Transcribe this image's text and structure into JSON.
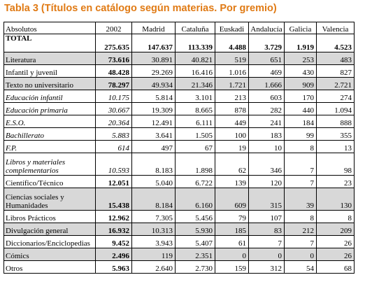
{
  "title": "Tabla 3 (Títulos en catálogo según materias. Por gremio)",
  "header": [
    "Absolutos",
    "2002",
    "Madrid",
    "Cataluña",
    "Euskadi",
    "Andalucía",
    "Galicia",
    "Valencia"
  ],
  "rows": [
    {
      "label": "TOTAL",
      "values": [
        "275.635",
        "147.637",
        "113.339",
        "4.488",
        "3.729",
        "1.919",
        "4.523"
      ],
      "bold": true,
      "italic": false,
      "shade": false,
      "h": 26
    },
    {
      "label": "Literatura",
      "values": [
        "73.616",
        "30.891",
        "40.821",
        "519",
        "651",
        "253",
        "483"
      ],
      "bold": false,
      "italic": false,
      "shade": true,
      "h": 18
    },
    {
      "label": "Infantil y juvenil",
      "values": [
        "48.428",
        "29.269",
        "16.416",
        "1.016",
        "469",
        "430",
        "827"
      ],
      "bold": false,
      "italic": false,
      "shade": false,
      "h": 18
    },
    {
      "label": "Texto no universitario",
      "values": [
        "78.297",
        "49.934",
        "21.346",
        "1.721",
        "1.666",
        "909",
        "2.721"
      ],
      "bold": false,
      "italic": false,
      "shade": true,
      "h": 18
    },
    {
      "label": " Educación infantil",
      "values": [
        "10.175",
        "5.814",
        "3.101",
        "213",
        "603",
        "170",
        "274"
      ],
      "bold": false,
      "italic": true,
      "shade": false,
      "h": 18
    },
    {
      "label": " Educación primaria",
      "values": [
        "30.667",
        "19.309",
        "8.665",
        "878",
        "282",
        "440",
        "1.094"
      ],
      "bold": false,
      "italic": true,
      "shade": false,
      "h": 18
    },
    {
      "label": " E.S.O.",
      "values": [
        "20.364",
        "12.491",
        "6.111",
        "449",
        "241",
        "184",
        "888"
      ],
      "bold": false,
      "italic": true,
      "shade": false,
      "h": 18
    },
    {
      "label": "Bachillerato",
      "values": [
        "5.883",
        "3.641",
        "1.505",
        "100",
        "183",
        "99",
        "355"
      ],
      "bold": false,
      "italic": true,
      "shade": false,
      "h": 18
    },
    {
      "label": " F.P.",
      "values": [
        "614",
        "497",
        "67",
        "19",
        "10",
        "8",
        "13"
      ],
      "bold": false,
      "italic": true,
      "shade": false,
      "h": 18
    },
    {
      "label": " Libros y materiales complementarios",
      "values": [
        "10.593",
        "8.183",
        "1.898",
        "62",
        "346",
        "7",
        "98"
      ],
      "bold": false,
      "italic": true,
      "shade": false,
      "h": 32,
      "wrap": true
    },
    {
      "label": "Científico/Técnico",
      "values": [
        "12.051",
        "5.040",
        "6.722",
        "139",
        "120",
        "7",
        "23"
      ],
      "bold": false,
      "italic": false,
      "shade": false,
      "h": 18
    },
    {
      "label": "Ciencias sociales y Humanidades",
      "values": [
        "15.438",
        "8.184",
        "6.160",
        "609",
        "315",
        "39",
        "130"
      ],
      "bold": false,
      "italic": false,
      "shade": true,
      "h": 32,
      "wrap": true
    },
    {
      "label": "Libros Prácticos",
      "values": [
        "12.962",
        "7.305",
        "5.456",
        "79",
        "107",
        "8",
        "8"
      ],
      "bold": false,
      "italic": false,
      "shade": false,
      "h": 18
    },
    {
      "label": "Divulgación general",
      "values": [
        "16.932",
        "10.313",
        "5.930",
        "185",
        "83",
        "212",
        "209"
      ],
      "bold": false,
      "italic": false,
      "shade": true,
      "h": 18
    },
    {
      "label": "Diccionarios/Enciclopedias",
      "values": [
        "9.452",
        "3.943",
        "5.407",
        "61",
        "7",
        "7",
        "26"
      ],
      "bold": false,
      "italic": false,
      "shade": false,
      "h": 18
    },
    {
      "label": "Cómics",
      "values": [
        "2.496",
        "119",
        "2.351",
        "0",
        "0",
        "0",
        "26"
      ],
      "bold": false,
      "italic": false,
      "shade": true,
      "h": 18
    },
    {
      "label": "Otros",
      "values": [
        "5.963",
        "2.640",
        "2.730",
        "159",
        "312",
        "54",
        "68"
      ],
      "bold": false,
      "italic": false,
      "shade": false,
      "h": 18
    }
  ]
}
